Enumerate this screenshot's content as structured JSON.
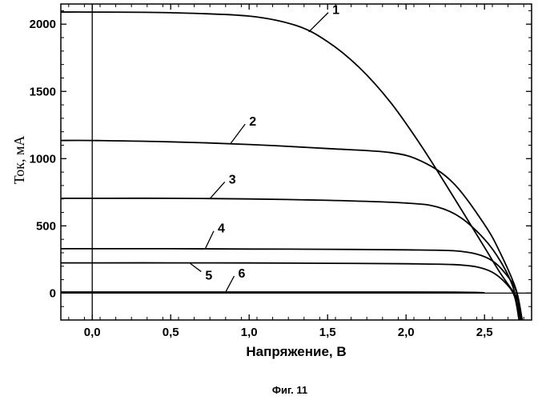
{
  "figure_caption": "Фиг. 11",
  "chart_data": {
    "type": "line",
    "title": "",
    "xlabel": "Напряжение, В",
    "ylabel": "Ток, мА",
    "xlim": [
      -0.2,
      2.8
    ],
    "ylim": [
      -200,
      2150
    ],
    "xticks": [
      0.0,
      0.5,
      1.0,
      1.5,
      2.0,
      2.5
    ],
    "xtick_labels": [
      "0,0",
      "0,5",
      "1,0",
      "1,5",
      "2,0",
      "2,5"
    ],
    "yticks": [
      0,
      500,
      1000,
      1500,
      2000
    ],
    "ytick_labels": [
      "0",
      "500",
      "1000",
      "1500",
      "2000"
    ],
    "reference_lines": {
      "x": 0,
      "y": 0
    },
    "grid": false,
    "series": [
      {
        "name": "1",
        "x": [
          -0.2,
          0.0,
          0.5,
          1.0,
          1.3,
          1.5,
          1.7,
          1.9,
          2.1,
          2.3,
          2.5,
          2.6,
          2.7,
          2.72,
          2.74
        ],
        "y": [
          2090,
          2090,
          2085,
          2060,
          1990,
          1870,
          1680,
          1420,
          1090,
          720,
          340,
          150,
          -20,
          -90,
          -200
        ]
      },
      {
        "name": "2",
        "x": [
          -0.2,
          0.0,
          0.5,
          1.0,
          1.5,
          1.9,
          2.1,
          2.3,
          2.5,
          2.6,
          2.7,
          2.74
        ],
        "y": [
          1135,
          1135,
          1125,
          1105,
          1075,
          1045,
          980,
          820,
          510,
          300,
          30,
          -200
        ]
      },
      {
        "name": "3",
        "x": [
          -0.2,
          0.0,
          0.5,
          1.0,
          1.5,
          2.0,
          2.2,
          2.35,
          2.5,
          2.6,
          2.68,
          2.73
        ],
        "y": [
          705,
          705,
          705,
          700,
          690,
          670,
          640,
          560,
          400,
          240,
          50,
          -200
        ]
      },
      {
        "name": "4",
        "x": [
          -0.2,
          0.0,
          0.5,
          1.0,
          1.5,
          2.0,
          2.3,
          2.45,
          2.55,
          2.63,
          2.7,
          2.73
        ],
        "y": [
          330,
          330,
          330,
          328,
          326,
          322,
          315,
          290,
          240,
          150,
          20,
          -200
        ]
      },
      {
        "name": "5",
        "x": [
          -0.2,
          0.0,
          0.5,
          1.0,
          1.5,
          2.0,
          2.3,
          2.45,
          2.55,
          2.63,
          2.69,
          2.72
        ],
        "y": [
          225,
          225,
          225,
          224,
          222,
          218,
          212,
          195,
          155,
          80,
          -20,
          -200
        ]
      },
      {
        "name": "6",
        "x": [
          -0.2,
          0.0,
          0.5,
          1.0,
          1.5,
          2.0,
          2.3,
          2.45,
          2.5
        ],
        "y": [
          8,
          8,
          8,
          8,
          8,
          8,
          7,
          5,
          3
        ]
      }
    ],
    "curve_labels": [
      {
        "text": "1",
        "series": "1",
        "x": 1.38,
        "label_x": 1.53,
        "label_y": 2075
      },
      {
        "text": "2",
        "series": "2",
        "x": 0.88,
        "label_x": 1.0,
        "label_y": 1245
      },
      {
        "text": "3",
        "series": "3",
        "x": 0.75,
        "label_x": 0.87,
        "label_y": 815
      },
      {
        "text": "4",
        "series": "4",
        "x": 0.72,
        "label_x": 0.8,
        "label_y": 450
      },
      {
        "text": "5",
        "series": "5",
        "x": 0.62,
        "label_x": 0.72,
        "label_y": 100
      },
      {
        "text": "6",
        "series": "6",
        "x": 0.85,
        "label_x": 0.93,
        "label_y": 115
      }
    ]
  }
}
